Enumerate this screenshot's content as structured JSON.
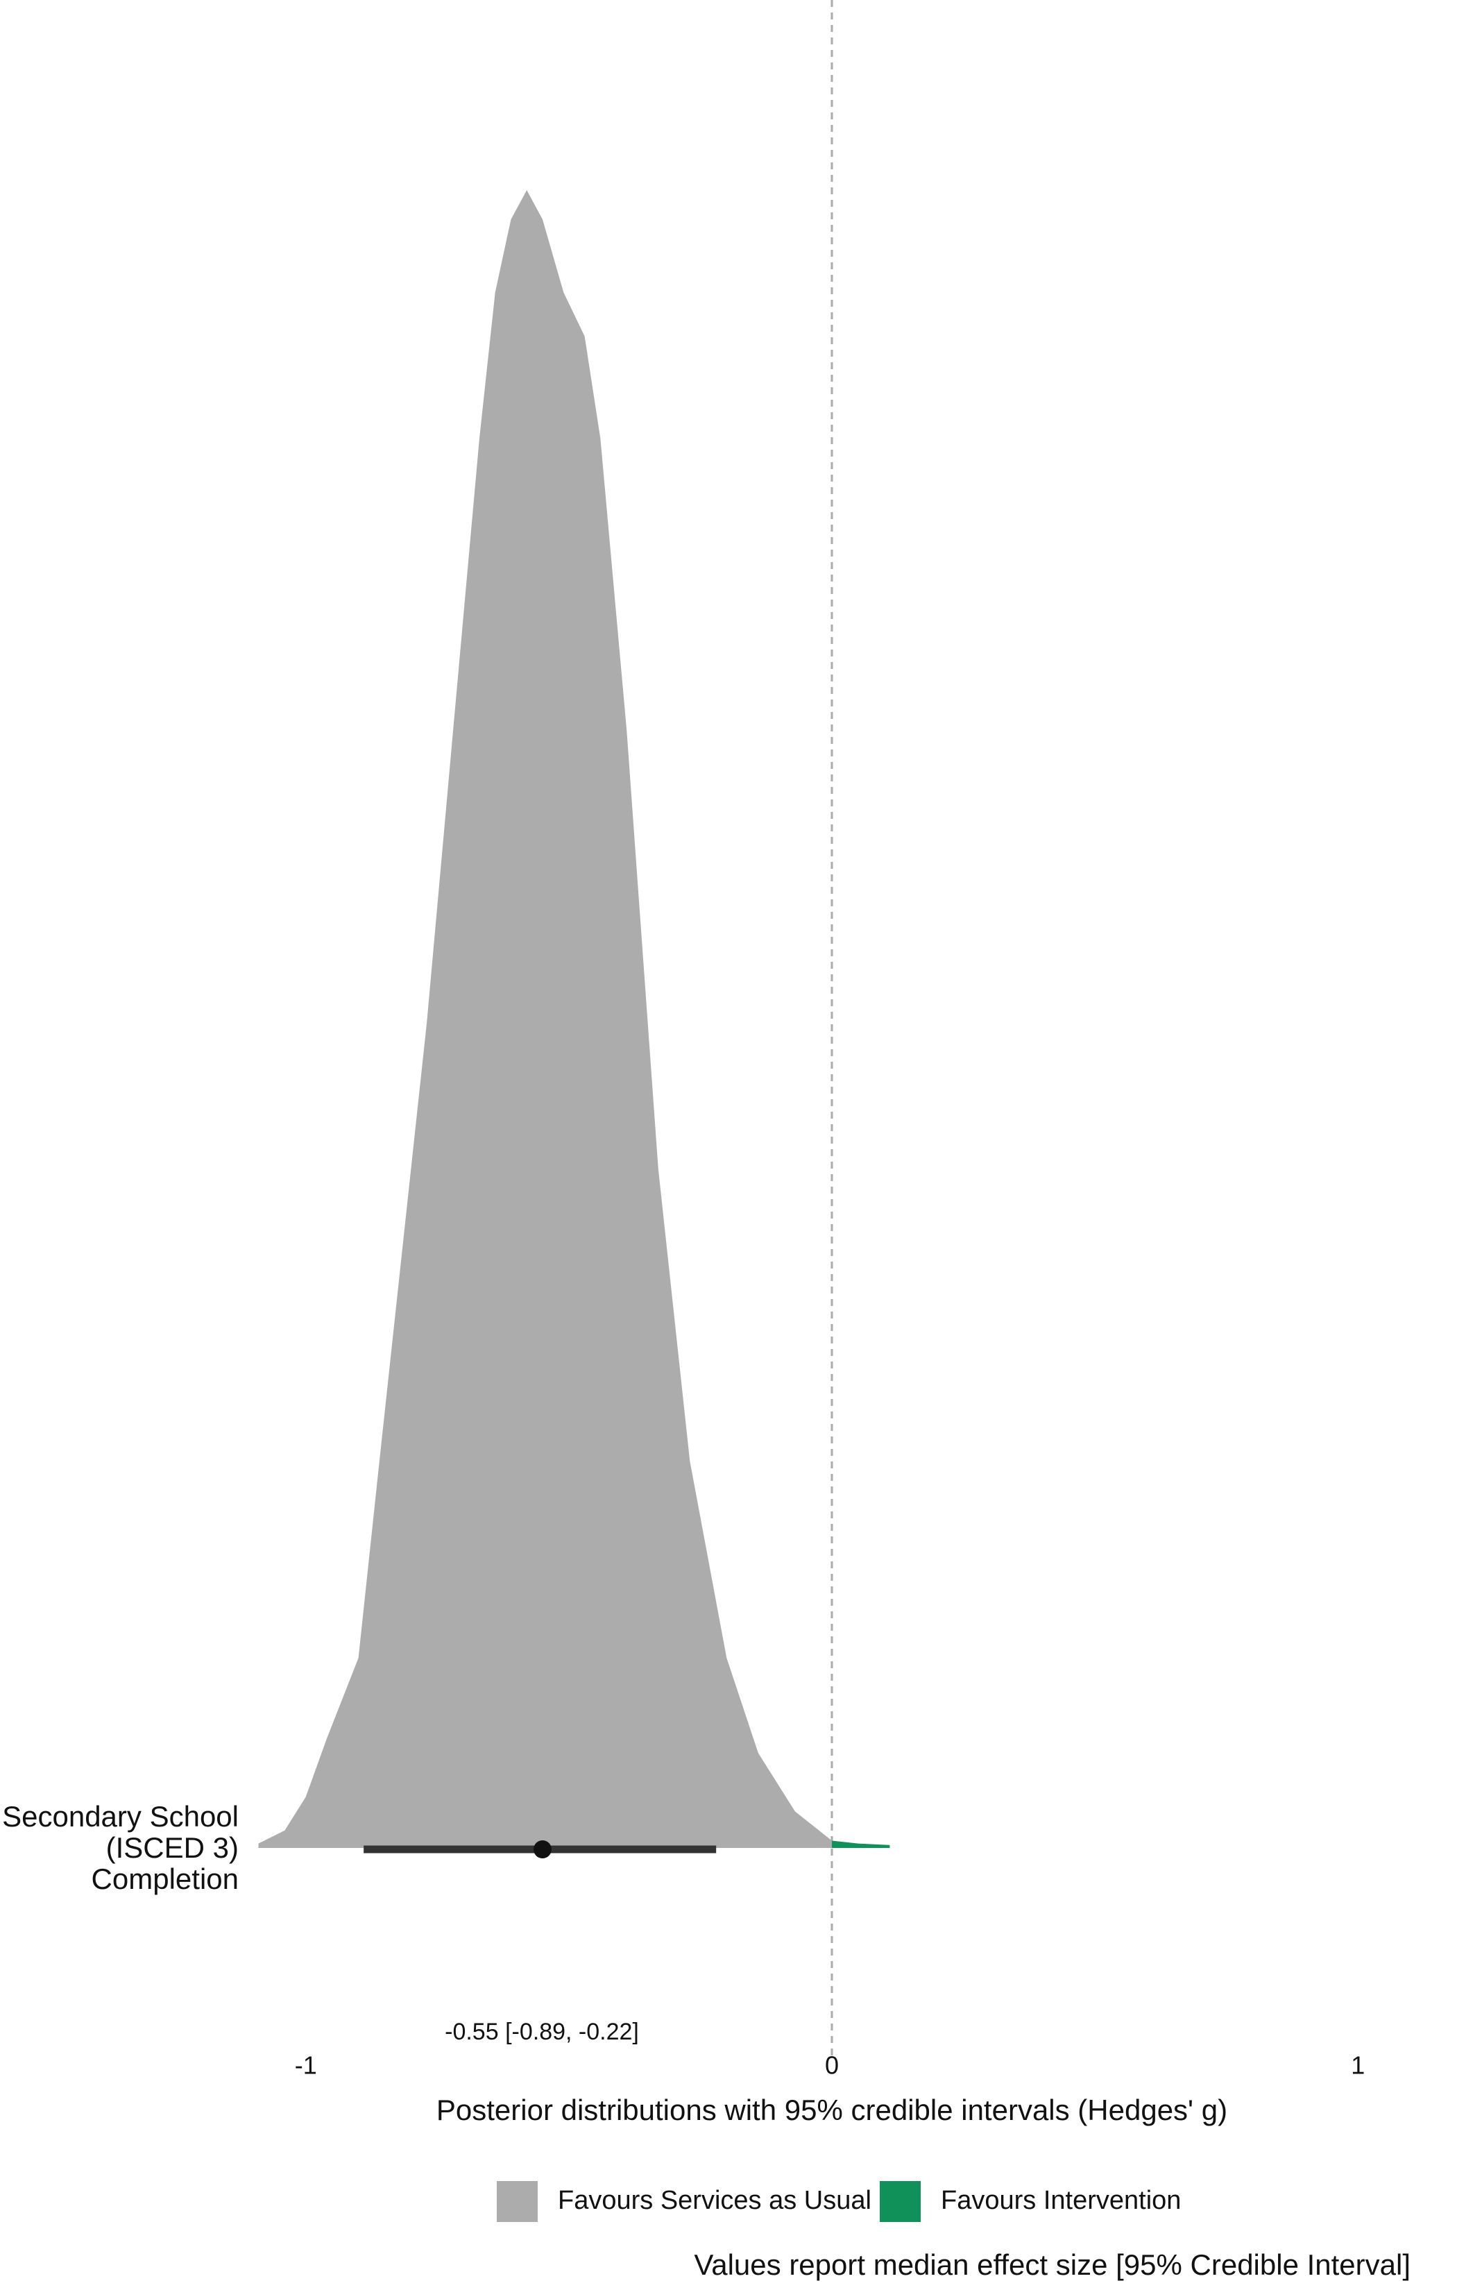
{
  "chart_data": {
    "type": "density",
    "categories": [
      "Secondary School\n(ISCED 3)\nCompletion"
    ],
    "x": [
      -1.09,
      -1.04,
      -1.0,
      -0.96,
      -0.9,
      -0.86,
      -0.8,
      -0.77,
      -0.72,
      -0.67,
      -0.64,
      -0.61,
      -0.58,
      -0.55,
      -0.51,
      -0.47,
      -0.44,
      -0.39,
      -0.33,
      -0.27,
      -0.2,
      -0.14,
      -0.07,
      0,
      0.05,
      0.11
    ],
    "values": [
      3,
      12,
      35,
      75,
      130,
      265,
      465,
      565,
      765,
      965,
      1065,
      1115,
      1135,
      1115,
      1065,
      1035,
      965,
      765,
      465,
      265,
      130,
      65,
      25,
      5,
      3,
      2
    ],
    "regions": [
      {
        "name": "Favours Services as Usual",
        "color": "#adacad"
      },
      {
        "name": "Favours Intervention",
        "color": "#11915a"
      }
    ],
    "interval": {
      "median": -0.55,
      "lower": -0.89,
      "upper": -0.22,
      "label": "-0.55 [-0.89, -0.22]"
    },
    "vline": 0,
    "xlim": [
      -1.15,
      1.15
    ],
    "xticks": [
      -1,
      0,
      1
    ],
    "xlabel": "Posterior distributions with 95% credible intervals (Hedges' g)",
    "caption": "Values report median effect size [95% Credible Interval]"
  }
}
